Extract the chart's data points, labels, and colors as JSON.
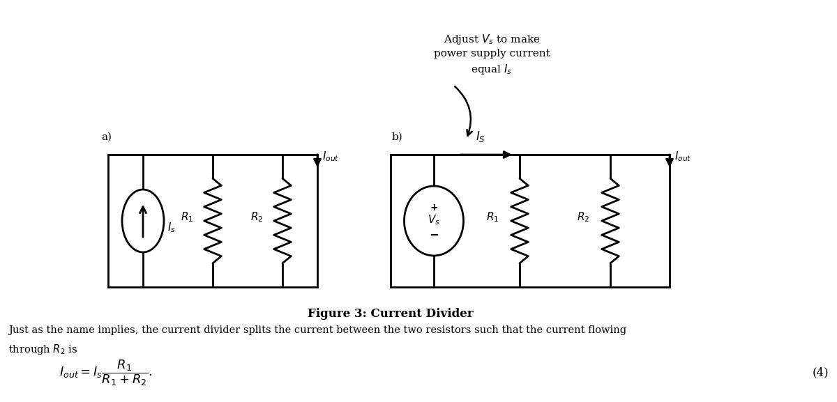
{
  "bg_color": "#ffffff",
  "line_color": "#000000",
  "title": "Figure 3: Current Divider",
  "annotation_text": "Adjust $V_s$ to make\npower supply current\nequal $I_s$",
  "body_line1": "Just as the name implies, the current divider splits the current between the two resistors such that the current flowing",
  "body_line2": "through $R_2$ is",
  "equation": "$I_{out} = I_s\\dfrac{R_1}{R_1 + R_2}.$",
  "equation_number": "(4)",
  "label_a": "a)",
  "label_b": "b)",
  "fig_width": 12.0,
  "fig_height": 5.77,
  "dpi": 100
}
